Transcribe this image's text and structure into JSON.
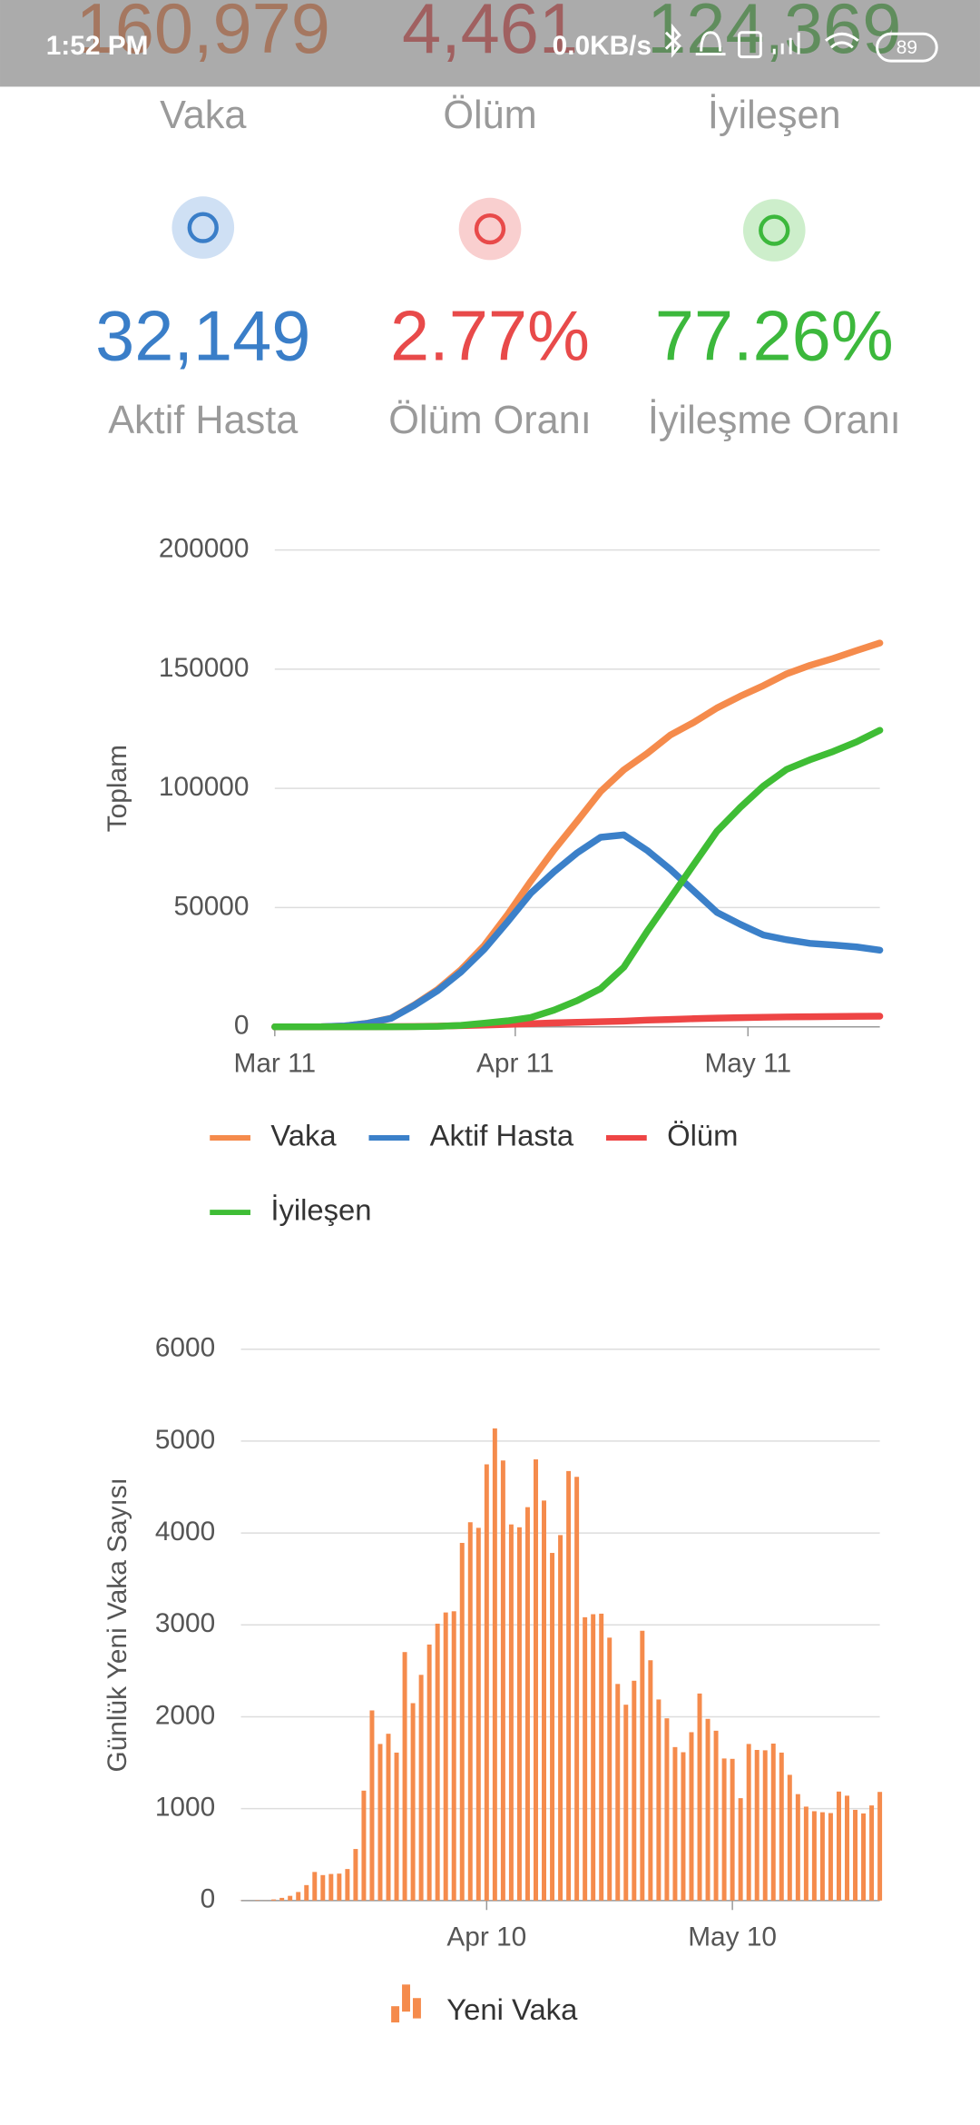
{
  "status_bar": {
    "time": "1:52 PM",
    "network_speed": "0.0KB/s",
    "battery": "89"
  },
  "totals": [
    {
      "value": "160,979",
      "label": "Vaka",
      "color": "#f0783c"
    },
    {
      "value": "4,461",
      "label": "Ölüm",
      "color": "#e23c3c"
    },
    {
      "value": "124,369",
      "label": "İyileşen",
      "color": "#3cb034"
    }
  ],
  "rates": [
    {
      "value": "32,149",
      "label": "Aktif Hasta",
      "color": "#3a7ec8",
      "soft": "#cfe0f4"
    },
    {
      "value": "2.77%",
      "label": "Ölüm Oranı",
      "color": "#e84a4a",
      "soft": "#f9cfcf"
    },
    {
      "value": "77.26%",
      "label": "İyileşme Oranı",
      "color": "#3cb83c",
      "soft": "#cdeecb"
    }
  ],
  "chart_data": [
    {
      "type": "line",
      "y_label": "Toplam",
      "x": [
        0,
        3,
        6,
        9,
        12,
        15,
        18,
        21,
        24,
        27,
        30,
        33,
        36,
        39,
        42,
        45,
        48,
        51,
        54,
        57,
        60,
        63,
        66,
        69,
        72,
        75,
        78
      ],
      "xlim": [
        0,
        78
      ],
      "xticks": [
        {
          "value": 0,
          "label": "Mar 11"
        },
        {
          "value": 31,
          "label": "Apr 11"
        },
        {
          "value": 61,
          "label": "May 11"
        }
      ],
      "ylim": [
        0,
        200000
      ],
      "yticks": [
        0,
        50000,
        100000,
        150000,
        200000
      ],
      "grid": true,
      "series": [
        {
          "name": "Vaka",
          "color": "#f58b4c",
          "values": [
            1,
            5,
            47,
            359,
            1529,
            3629,
            9217,
            15679,
            23934,
            34109,
            47029,
            61049,
            74193,
            86306,
            98674,
            107773,
            114653,
            122392,
            127659,
            133721,
            138657,
            143114,
            148067,
            151615,
            154500,
            157814,
            160979
          ]
        },
        {
          "name": "Aktif Hasta",
          "color": "#3b80c9",
          "values": [
            1,
            5,
            46,
            356,
            1490,
            3540,
            9000,
            15200,
            23000,
            32500,
            44000,
            56000,
            65000,
            73000,
            79500,
            80500,
            74000,
            66000,
            57000,
            48000,
            43000,
            38500,
            36500,
            35000,
            34300,
            33500,
            32149
          ]
        },
        {
          "name": "Ölüm",
          "color": "#ee4545",
          "values": [
            0,
            0,
            0,
            1,
            37,
            75,
            131,
            277,
            501,
            725,
            1006,
            1296,
            1643,
            1890,
            2140,
            2376,
            2805,
            3081,
            3397,
            3641,
            3841,
            4007,
            4140,
            4222,
            4308,
            4397,
            4461
          ]
        },
        {
          "name": "İyileşen",
          "color": "#3fbd35",
          "values": [
            0,
            0,
            0,
            0,
            0,
            0,
            50,
            200,
            600,
            1500,
            2500,
            3900,
            7000,
            11000,
            16000,
            25000,
            40000,
            54000,
            68000,
            82000,
            92000,
            101000,
            108000,
            112000,
            115500,
            119500,
            124369
          ]
        }
      ]
    },
    {
      "type": "bar",
      "y_label": "Günlük Yeni Vaka Sayısı",
      "x": [
        0,
        1,
        2,
        3,
        4,
        5,
        6,
        7,
        8,
        9,
        10,
        11,
        12,
        13,
        14,
        15,
        16,
        17,
        18,
        19,
        20,
        21,
        22,
        23,
        24,
        25,
        26,
        27,
        28,
        29,
        30,
        31,
        32,
        33,
        34,
        35,
        36,
        37,
        38,
        39,
        40,
        41,
        42,
        43,
        44,
        45,
        46,
        47,
        48,
        49,
        50,
        51,
        52,
        53,
        54,
        55,
        56,
        57,
        58,
        59,
        60,
        61,
        62,
        63,
        64,
        65,
        66,
        67,
        68,
        69,
        70,
        71,
        72,
        73,
        74,
        75,
        76,
        77,
        78
      ],
      "xlim": [
        0,
        78
      ],
      "xticks": [
        {
          "value": 30,
          "label": "Apr 10"
        },
        {
          "value": 60,
          "label": "May 10"
        }
      ],
      "ylim": [
        0,
        6000
      ],
      "yticks": [
        0,
        1000,
        2000,
        3000,
        4000,
        5000,
        6000
      ],
      "grid": true,
      "series": [
        {
          "name": "Yeni Vaka",
          "color": "#f58b4c",
          "values": [
            1,
            0,
            4,
            1,
            12,
            29,
            51,
            93,
            168,
            311,
            277,
            289,
            293,
            343,
            561,
            1196,
            2069,
            1704,
            1815,
            1610,
            2704,
            2148,
            2456,
            2786,
            3013,
            3135,
            3148,
            3892,
            4117,
            4056,
            4747,
            5138,
            4789,
            4093,
            4062,
            4281,
            4801,
            4353,
            3783,
            3977,
            4674,
            4611,
            3083,
            3116,
            3122,
            2861,
            2357,
            2131,
            2392,
            2936,
            2615,
            2188,
            1983,
            1670,
            1614,
            1832,
            2253,
            1977,
            1848,
            1546,
            1542,
            1114,
            1704,
            1639,
            1635,
            1708,
            1610,
            1368,
            1158,
            1022,
            972,
            961,
            952,
            1186,
            1141,
            987,
            948,
            1035,
            1182
          ]
        }
      ]
    }
  ]
}
